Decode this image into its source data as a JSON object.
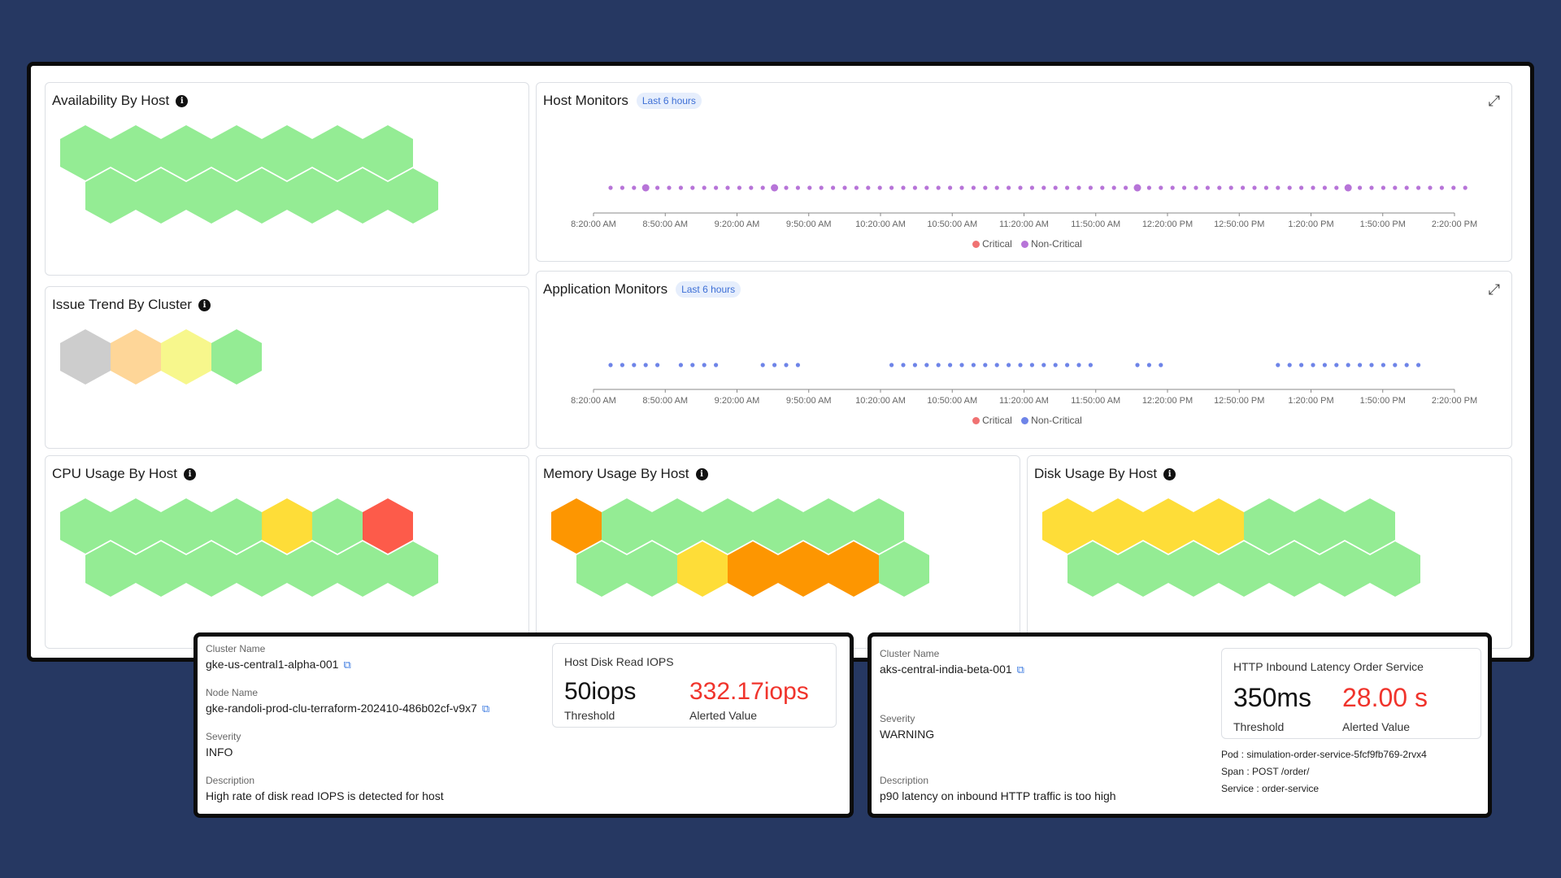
{
  "colors": {
    "ok": "#94ec94",
    "gray": "#cdcdcd",
    "light_orange": "#fed698",
    "light_yellow": "#f7f78c",
    "yellow": "#fedd38",
    "orange": "#fd9601",
    "red": "#fd5b4a",
    "critical": "#f07272",
    "non_critical_purple": "#b774d8",
    "non_critical_blue": "#6e84e8"
  },
  "panels": {
    "availability": {
      "title": "Availability By Host",
      "hexes": [
        "ok",
        "ok",
        "ok",
        "ok",
        "ok",
        "ok",
        "ok",
        "ok",
        "ok",
        "ok",
        "ok",
        "ok",
        "ok",
        "ok"
      ]
    },
    "issue_trend": {
      "title": "Issue Trend By Cluster",
      "hexes": [
        "gray",
        "light_orange",
        "light_yellow",
        "ok"
      ]
    },
    "cpu": {
      "title": "CPU Usage By Host",
      "hexes": [
        "ok",
        "ok",
        "ok",
        "ok",
        "yellow",
        "ok",
        "red",
        "ok",
        "ok",
        "ok",
        "ok",
        "ok",
        "ok",
        "ok"
      ]
    },
    "memory": {
      "title": "Memory Usage By Host",
      "hexes": [
        "orange",
        "ok",
        "ok",
        "ok",
        "ok",
        "ok",
        "ok",
        "ok",
        "ok",
        "yellow",
        "orange",
        "orange",
        "orange",
        "ok"
      ]
    },
    "disk": {
      "title": "Disk Usage By Host",
      "hexes": [
        "yellow",
        "yellow",
        "yellow",
        "yellow",
        "ok",
        "ok",
        "ok",
        "ok",
        "ok",
        "ok",
        "ok",
        "ok",
        "ok",
        "ok"
      ]
    },
    "host_monitors": {
      "title": "Host Monitors",
      "badge": "Last 6 hours",
      "expand_icon": "expand-icon",
      "ticks": [
        "8:20:00 AM",
        "8:50:00 AM",
        "9:20:00 AM",
        "9:50:00 AM",
        "10:20:00 AM",
        "10:50:00 AM",
        "11:20:00 AM",
        "11:50:00 AM",
        "12:20:00 PM",
        "12:50:00 PM",
        "1:20:00 PM",
        "1:50:00 PM",
        "2:20:00 PM"
      ],
      "legend": [
        "Critical",
        "Non-Critical"
      ],
      "dot_color": "non_critical_purple",
      "dot_count": 74,
      "large_dots": [
        3,
        14,
        45,
        63
      ]
    },
    "app_monitors": {
      "title": "Application Monitors",
      "badge": "Last 6 hours",
      "expand_icon": "expand-icon",
      "ticks": [
        "8:20:00 AM",
        "8:50:00 AM",
        "9:20:00 AM",
        "9:50:00 AM",
        "10:20:00 AM",
        "10:50:00 AM",
        "11:20:00 AM",
        "11:50:00 AM",
        "12:20:00 PM",
        "12:50:00 PM",
        "1:20:00 PM",
        "1:50:00 PM",
        "2:20:00 PM"
      ],
      "legend": [
        "Critical",
        "Non-Critical"
      ],
      "dot_color": "non_critical_blue",
      "dot_groups": [
        [
          0,
          4
        ],
        [
          6,
          9
        ],
        [
          13,
          16
        ],
        [
          24,
          41
        ],
        [
          45,
          47
        ],
        [
          57,
          69
        ]
      ]
    }
  },
  "card_left": {
    "cluster_label": "Cluster Name",
    "cluster_value": "gke-us-central1-alpha-001",
    "node_label": "Node Name",
    "node_value": "gke-randoli-prod-clu-terraform-202410-486b02cf-v9x7",
    "severity_label": "Severity",
    "severity_value": "INFO",
    "description_label": "Description",
    "description_value": "High rate of disk read IOPS is detected for host",
    "metric_title": "Host Disk Read IOPS",
    "threshold_value": "50iops",
    "threshold_label": "Threshold",
    "alerted_value": "332.17iops",
    "alerted_label": "Alerted Value"
  },
  "card_right": {
    "cluster_label": "Cluster Name",
    "cluster_value": "aks-central-india-beta-001",
    "severity_label": "Severity",
    "severity_value": "WARNING",
    "description_label": "Description",
    "description_value": "p90 latency on inbound HTTP traffic is too high",
    "metric_title": "HTTP Inbound Latency Order Service",
    "threshold_value": "350ms",
    "threshold_label": "Threshold",
    "alerted_value": "28.00 s",
    "alerted_label": "Alerted Value",
    "pod": "Pod : simulation-order-service-5fcf9fb769-2rvx4",
    "span": "Span : POST /order/",
    "service": "Service : order-service"
  }
}
